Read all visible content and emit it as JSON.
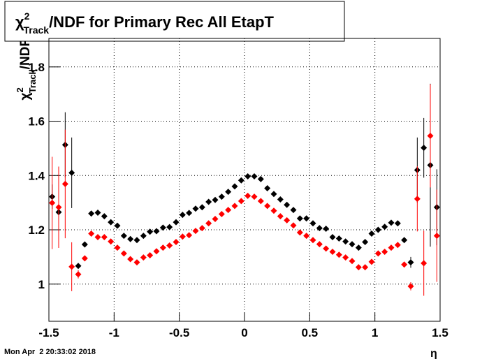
{
  "chart_data": {
    "type": "scatter",
    "title": {
      "symbol": "χ",
      "sup": "2",
      "sub": "Track",
      "text": "/NDF for Primary Rec All EtapT"
    },
    "ylabel": {
      "symbol": "χ",
      "sup": "2",
      "sub": "Track",
      "text": "/NDF"
    },
    "xlabel": "η",
    "timestamp": "Mon Apr  2 20:33:02 2018",
    "x": [
      -1.475,
      -1.425,
      -1.375,
      -1.325,
      -1.275,
      -1.225,
      -1.175,
      -1.125,
      -1.075,
      -1.025,
      -0.975,
      -0.925,
      -0.875,
      -0.825,
      -0.775,
      -0.725,
      -0.675,
      -0.625,
      -0.575,
      -0.525,
      -0.475,
      -0.425,
      -0.375,
      -0.325,
      -0.275,
      -0.225,
      -0.175,
      -0.125,
      -0.075,
      -0.025,
      0.025,
      0.075,
      0.125,
      0.175,
      0.225,
      0.275,
      0.325,
      0.375,
      0.425,
      0.475,
      0.525,
      0.575,
      0.625,
      0.675,
      0.725,
      0.775,
      0.825,
      0.875,
      0.925,
      0.975,
      1.025,
      1.075,
      1.125,
      1.175,
      1.225,
      1.275,
      1.325,
      1.375,
      1.425,
      1.475
    ],
    "series": [
      {
        "color": "#000000",
        "values": [
          1.322,
          1.265,
          1.513,
          1.41,
          1.067,
          1.146,
          1.26,
          1.263,
          1.25,
          1.228,
          1.215,
          1.178,
          1.166,
          1.162,
          1.178,
          1.193,
          1.195,
          1.208,
          1.21,
          1.228,
          1.255,
          1.262,
          1.278,
          1.283,
          1.303,
          1.31,
          1.322,
          1.34,
          1.36,
          1.382,
          1.397,
          1.397,
          1.387,
          1.353,
          1.332,
          1.312,
          1.292,
          1.273,
          1.242,
          1.242,
          1.224,
          1.206,
          1.204,
          1.173,
          1.168,
          1.157,
          1.147,
          1.134,
          1.155,
          1.186,
          1.2,
          1.211,
          1.226,
          1.224,
          1.162,
          1.08,
          1.42,
          1.502,
          1.438,
          1.283
        ],
        "errors": [
          0.045,
          0.06,
          0.12,
          0.13,
          0.01,
          0.005,
          0.004,
          0.004,
          0.004,
          0.004,
          0.004,
          0.004,
          0.004,
          0.004,
          0.004,
          0.004,
          0.004,
          0.004,
          0.004,
          0.004,
          0.004,
          0.004,
          0.004,
          0.004,
          0.004,
          0.004,
          0.004,
          0.004,
          0.004,
          0.004,
          0.004,
          0.004,
          0.004,
          0.004,
          0.004,
          0.004,
          0.004,
          0.004,
          0.004,
          0.004,
          0.004,
          0.004,
          0.004,
          0.004,
          0.004,
          0.004,
          0.004,
          0.004,
          0.004,
          0.004,
          0.004,
          0.004,
          0.004,
          0.005,
          0.005,
          0.02,
          0.12,
          0.11,
          0.3,
          0.14
        ]
      },
      {
        "color": "#ff0000",
        "values": [
          1.299,
          1.283,
          1.369,
          1.064,
          1.036,
          1.095,
          1.186,
          1.173,
          1.173,
          1.157,
          1.134,
          1.113,
          1.092,
          1.08,
          1.098,
          1.106,
          1.121,
          1.134,
          1.142,
          1.155,
          1.175,
          1.18,
          1.196,
          1.206,
          1.224,
          1.24,
          1.258,
          1.273,
          1.288,
          1.306,
          1.325,
          1.322,
          1.306,
          1.288,
          1.27,
          1.25,
          1.235,
          1.216,
          1.19,
          1.178,
          1.162,
          1.147,
          1.131,
          1.119,
          1.108,
          1.098,
          1.085,
          1.062,
          1.062,
          1.082,
          1.113,
          1.119,
          1.134,
          1.144,
          1.072,
          0.992,
          1.314,
          1.077,
          1.546,
          1.178
        ],
        "errors": [
          0.17,
          0.15,
          0.2,
          0.09,
          0.015,
          0.01,
          0.004,
          0.004,
          0.004,
          0.004,
          0.004,
          0.004,
          0.004,
          0.004,
          0.004,
          0.004,
          0.004,
          0.004,
          0.004,
          0.004,
          0.004,
          0.004,
          0.004,
          0.004,
          0.004,
          0.004,
          0.004,
          0.004,
          0.004,
          0.004,
          0.004,
          0.004,
          0.004,
          0.004,
          0.004,
          0.004,
          0.004,
          0.004,
          0.004,
          0.004,
          0.004,
          0.004,
          0.004,
          0.004,
          0.004,
          0.004,
          0.004,
          0.004,
          0.004,
          0.004,
          0.004,
          0.004,
          0.004,
          0.005,
          0.005,
          0.015,
          0.12,
          0.12,
          0.19,
          0.17
        ]
      }
    ],
    "xlim": [
      -1.5,
      1.5
    ],
    "xticks": [
      -1.5,
      -1,
      -0.5,
      0,
      0.5,
      1,
      1.5
    ],
    "ylim": [
      0.863,
      1.905
    ],
    "yticks": [
      1,
      1.2,
      1.4,
      1.6,
      1.8
    ],
    "grid": true
  }
}
